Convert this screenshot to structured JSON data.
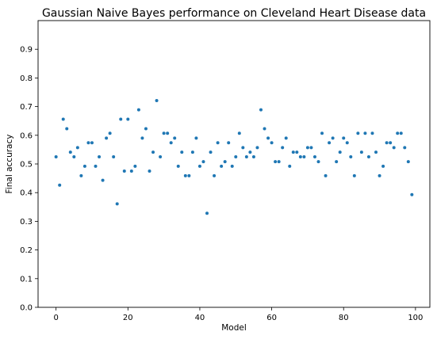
{
  "chart_data": {
    "type": "scatter",
    "title": "Gaussian Naive Bayes performance on Cleveland Heart Disease data",
    "xlabel": "Model",
    "ylabel": "Final accuracy",
    "xlim": [
      -5,
      104
    ],
    "ylim": [
      0.0,
      1.0
    ],
    "xticks": [
      0,
      20,
      40,
      60,
      80,
      100
    ],
    "yticks": [
      0.0,
      0.1,
      0.2,
      0.3,
      0.4,
      0.5,
      0.6,
      0.7,
      0.8,
      0.9
    ],
    "xtick_labels": [
      "0",
      "20",
      "40",
      "60",
      "80",
      "100"
    ],
    "ytick_labels": [
      "0.0",
      "0.1",
      "0.2",
      "0.3",
      "0.4",
      "0.5",
      "0.6",
      "0.7",
      "0.8",
      "0.9"
    ],
    "grid": false,
    "marker_color": "#1f77b4",
    "x": [
      0,
      1,
      2,
      3,
      4,
      5,
      6,
      7,
      8,
      9,
      10,
      11,
      12,
      13,
      14,
      15,
      16,
      17,
      18,
      19,
      20,
      21,
      22,
      23,
      24,
      25,
      26,
      27,
      28,
      29,
      30,
      31,
      32,
      33,
      34,
      35,
      36,
      37,
      38,
      39,
      40,
      41,
      42,
      43,
      44,
      45,
      46,
      47,
      48,
      49,
      50,
      51,
      52,
      53,
      54,
      55,
      56,
      57,
      58,
      59,
      60,
      61,
      62,
      63,
      64,
      65,
      66,
      67,
      68,
      69,
      70,
      71,
      72,
      73,
      74,
      75,
      76,
      77,
      78,
      79,
      80,
      81,
      82,
      83,
      84,
      85,
      86,
      87,
      88,
      89,
      90,
      91,
      92,
      93,
      94,
      95,
      96,
      97,
      98,
      99
    ],
    "y": [
      0.525,
      0.426,
      0.656,
      0.623,
      0.541,
      0.525,
      0.557,
      0.459,
      0.492,
      0.574,
      0.574,
      0.492,
      0.525,
      0.443,
      0.59,
      0.607,
      0.525,
      0.361,
      0.656,
      0.475,
      0.656,
      0.475,
      0.492,
      0.689,
      0.59,
      0.623,
      0.475,
      0.541,
      0.721,
      0.525,
      0.607,
      0.607,
      0.574,
      0.59,
      0.492,
      0.541,
      0.459,
      0.459,
      0.541,
      0.59,
      0.492,
      0.508,
      0.328,
      0.541,
      0.459,
      0.574,
      0.492,
      0.508,
      0.574,
      0.492,
      0.525,
      0.607,
      0.557,
      0.525,
      0.541,
      0.525,
      0.557,
      0.689,
      0.623,
      0.59,
      0.574,
      0.508,
      0.508,
      0.557,
      0.59,
      0.492,
      0.541,
      0.541,
      0.525,
      0.525,
      0.557,
      0.557,
      0.525,
      0.508,
      0.607,
      0.459,
      0.574,
      0.59,
      0.508,
      0.541,
      0.59,
      0.574,
      0.525,
      0.459,
      0.607,
      0.541,
      0.607,
      0.525,
      0.607,
      0.541,
      0.459,
      0.492,
      0.574,
      0.574,
      0.557,
      0.607,
      0.607,
      0.557,
      0.508,
      0.393
    ]
  }
}
